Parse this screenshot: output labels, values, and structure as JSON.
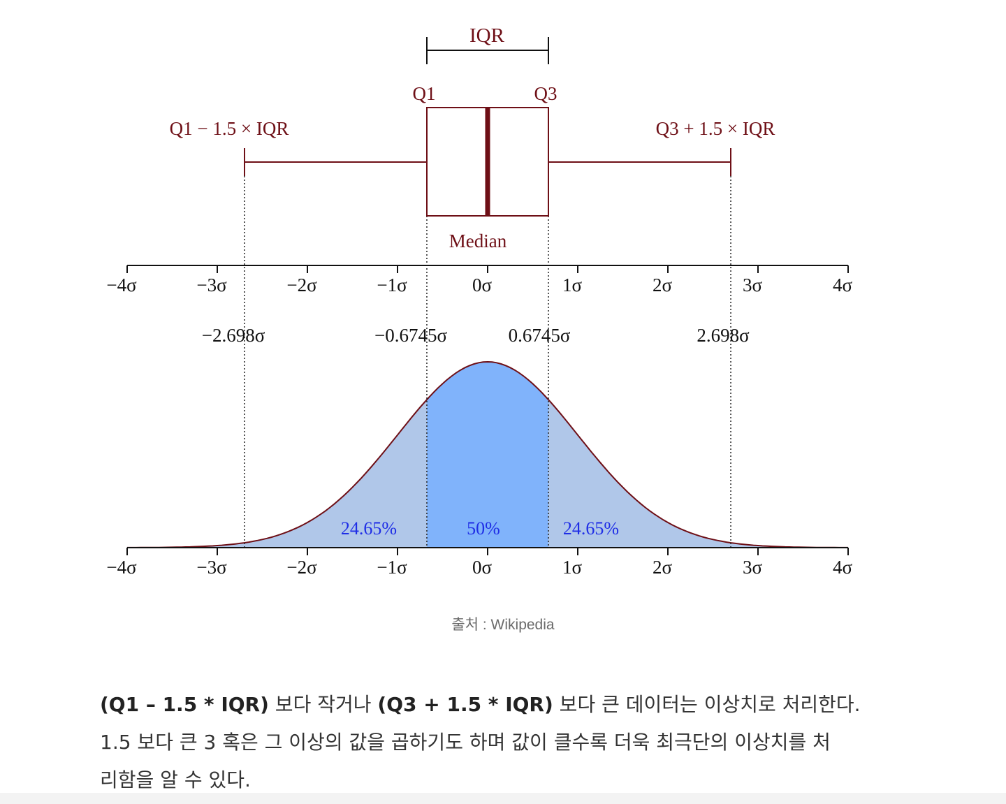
{
  "figure": {
    "boxplot": {
      "iqr_label": "IQR",
      "q1_label": "Q1",
      "q3_label": "Q3",
      "lower_fence_label": "Q1 − 1.5 × IQR",
      "upper_fence_label": "Q3 + 1.5 × IQR",
      "median_label": "Median"
    },
    "sigma_ticks": [
      "−4σ",
      "−3σ",
      "−2σ",
      "−1σ",
      "0σ",
      "1σ",
      "2σ",
      "3σ",
      "4σ"
    ],
    "sigma_values": [
      -4,
      -3,
      -2,
      -1,
      0,
      1,
      2,
      3,
      4
    ],
    "markers": [
      {
        "value": -2.698,
        "label": "−2.698σ"
      },
      {
        "value": -0.6745,
        "label": "−0.6745σ"
      },
      {
        "value": 0.6745,
        "label": "0.6745σ"
      },
      {
        "value": 2.698,
        "label": "2.698σ"
      }
    ],
    "regions": [
      {
        "label": "24.65%"
      },
      {
        "label": "50%"
      },
      {
        "label": "24.65%"
      }
    ],
    "colors": {
      "outline": "#6e0f16",
      "inner_fill": "#80b3fb",
      "outer_fill": "#b0c7e9",
      "percent_text": "#1f2ee6"
    }
  },
  "caption": "출처 : Wikipedia",
  "body": {
    "line1_bold1": "(Q1 – 1.5 * IQR)",
    "line1_text1": " 보다 작거나 ",
    "line1_bold2": "(Q3 + 1.5 * IQR)",
    "line1_text2": " 보다 큰 데이터는 이상치로 처리한다.",
    "line2": "1.5 보다 큰 3 혹은 그 이상의 값을 곱하기도 하며 값이 클수록 더욱 최극단의 이상치를 처",
    "line3": "리함을 알 수 있다."
  }
}
